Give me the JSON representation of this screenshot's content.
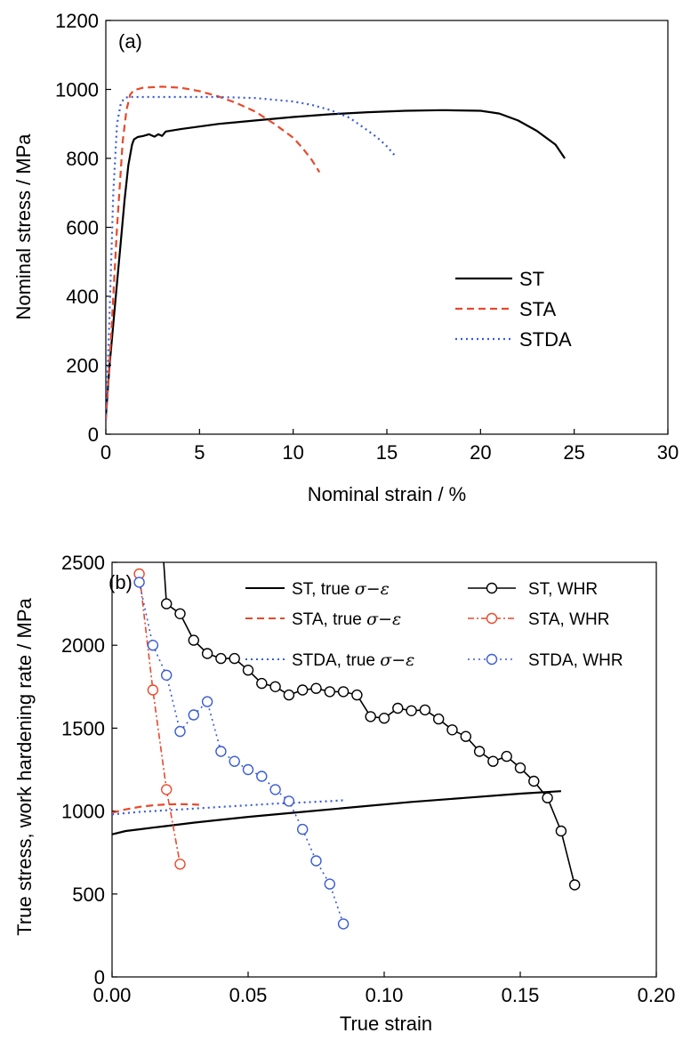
{
  "chart_data": [
    {
      "type": "line",
      "panel_label": "(a)",
      "xlabel": "Nominal strain / %",
      "ylabel": "Nominal stress / MPa",
      "xlim": [
        0,
        30
      ],
      "ylim": [
        0,
        1200
      ],
      "xticks": [
        0,
        5,
        10,
        15,
        20,
        25,
        30
      ],
      "yticks": [
        0,
        200,
        400,
        600,
        800,
        1000,
        1200
      ],
      "legend_position": "center-right",
      "series": [
        {
          "name": "ST",
          "color": "#000000",
          "style": "solid",
          "x": [
            0,
            0.2,
            0.5,
            0.8,
            1.0,
            1.2,
            1.4,
            1.5,
            1.7,
            2.0,
            2.3,
            2.6,
            2.8,
            3.0,
            3.2,
            4,
            6,
            8,
            10,
            12,
            14,
            16,
            18,
            20,
            21,
            22,
            23,
            24,
            24.5
          ],
          "y": [
            50,
            200,
            380,
            560,
            680,
            780,
            840,
            855,
            862,
            865,
            870,
            863,
            870,
            865,
            878,
            885,
            900,
            910,
            920,
            928,
            934,
            938,
            940,
            938,
            930,
            910,
            880,
            840,
            800
          ]
        },
        {
          "name": "STA",
          "color": "#e8492b",
          "style": "dashed",
          "x": [
            0,
            0.3,
            0.6,
            0.9,
            1.1,
            1.3,
            1.5,
            2,
            3,
            4,
            5,
            6,
            7,
            8,
            9,
            10,
            10.5,
            11,
            11.4
          ],
          "y": [
            40,
            300,
            600,
            850,
            940,
            985,
            998,
            1005,
            1008,
            1005,
            995,
            980,
            960,
            935,
            900,
            860,
            830,
            795,
            760
          ]
        },
        {
          "name": "STDA",
          "color": "#3a5bd6",
          "style": "dotted",
          "x": [
            0,
            0.2,
            0.4,
            0.6,
            0.8,
            1.0,
            1.2,
            2,
            4,
            6,
            8,
            10,
            11,
            12,
            13,
            14,
            14.5,
            15,
            15.4
          ],
          "y": [
            40,
            350,
            700,
            900,
            960,
            975,
            978,
            978,
            978,
            978,
            975,
            965,
            955,
            940,
            918,
            880,
            860,
            835,
            810
          ]
        }
      ]
    },
    {
      "type": "line",
      "panel_label": "(b)",
      "xlabel": "True strain",
      "ylabel": "True stress, work hardening rate / MPa",
      "xlim": [
        0,
        0.2
      ],
      "ylim": [
        0,
        2500
      ],
      "xticks": [
        "0.00",
        "0.05",
        "0.10",
        "0.15",
        "0.20"
      ],
      "yticks": [
        "0",
        "500",
        "1000",
        "1500",
        "2000",
        "2500"
      ],
      "legend_position": "top",
      "legend_math": "σ−ε",
      "series": [
        {
          "name": "ST, true σ−ε",
          "label_text": "ST, true",
          "color": "#000000",
          "style": "solid",
          "marker": "none",
          "x": [
            0,
            0.005,
            0.01,
            0.015,
            0.02,
            0.03,
            0.05,
            0.07,
            0.09,
            0.11,
            0.13,
            0.15,
            0.165
          ],
          "y": [
            860,
            880,
            890,
            900,
            910,
            930,
            965,
            995,
            1025,
            1055,
            1080,
            1105,
            1120
          ]
        },
        {
          "name": "STA, true σ−ε",
          "label_text": "STA, true",
          "color": "#e8492b",
          "style": "dashed",
          "marker": "none",
          "x": [
            0,
            0.005,
            0.01,
            0.015,
            0.02,
            0.025,
            0.03,
            0.032
          ],
          "y": [
            990,
            1010,
            1025,
            1035,
            1040,
            1042,
            1040,
            1038
          ]
        },
        {
          "name": "STDA, true σ−ε",
          "label_text": "STDA, true",
          "color": "#3a5bd6",
          "style": "dotted",
          "marker": "none",
          "x": [
            0,
            0.01,
            0.02,
            0.03,
            0.04,
            0.05,
            0.06,
            0.07,
            0.08,
            0.085
          ],
          "y": [
            980,
            995,
            1005,
            1015,
            1025,
            1035,
            1045,
            1052,
            1060,
            1065
          ]
        },
        {
          "name": "ST, WHR",
          "color": "#000000",
          "style": "solid",
          "marker": "circle",
          "x": [
            0.019,
            0.02,
            0.025,
            0.03,
            0.035,
            0.04,
            0.045,
            0.05,
            0.055,
            0.06,
            0.065,
            0.07,
            0.075,
            0.08,
            0.085,
            0.09,
            0.095,
            0.1,
            0.105,
            0.11,
            0.115,
            0.12,
            0.125,
            0.13,
            0.135,
            0.14,
            0.145,
            0.15,
            0.155,
            0.16,
            0.165,
            0.17
          ],
          "y": [
            2500,
            2250,
            2190,
            2030,
            1950,
            1920,
            1920,
            1850,
            1770,
            1750,
            1700,
            1730,
            1740,
            1720,
            1720,
            1700,
            1570,
            1560,
            1620,
            1605,
            1610,
            1555,
            1490,
            1450,
            1360,
            1300,
            1330,
            1260,
            1180,
            1080,
            880,
            555
          ],
          "markers_from_index": 1
        },
        {
          "name": "STA, WHR",
          "color": "#e8492b",
          "style": "dashed",
          "marker": "circle",
          "x": [
            0.01,
            0.015,
            0.02,
            0.025
          ],
          "y": [
            2430,
            1730,
            1130,
            680
          ]
        },
        {
          "name": "STDA, WHR",
          "color": "#3a5bd6",
          "style": "dotted",
          "marker": "circle",
          "x": [
            0.01,
            0.015,
            0.02,
            0.025,
            0.03,
            0.035,
            0.04,
            0.045,
            0.05,
            0.055,
            0.06,
            0.065,
            0.07,
            0.075,
            0.08,
            0.085
          ],
          "y": [
            2380,
            2000,
            1820,
            1480,
            1580,
            1660,
            1360,
            1300,
            1250,
            1210,
            1130,
            1060,
            890,
            700,
            560,
            320
          ]
        }
      ]
    }
  ]
}
